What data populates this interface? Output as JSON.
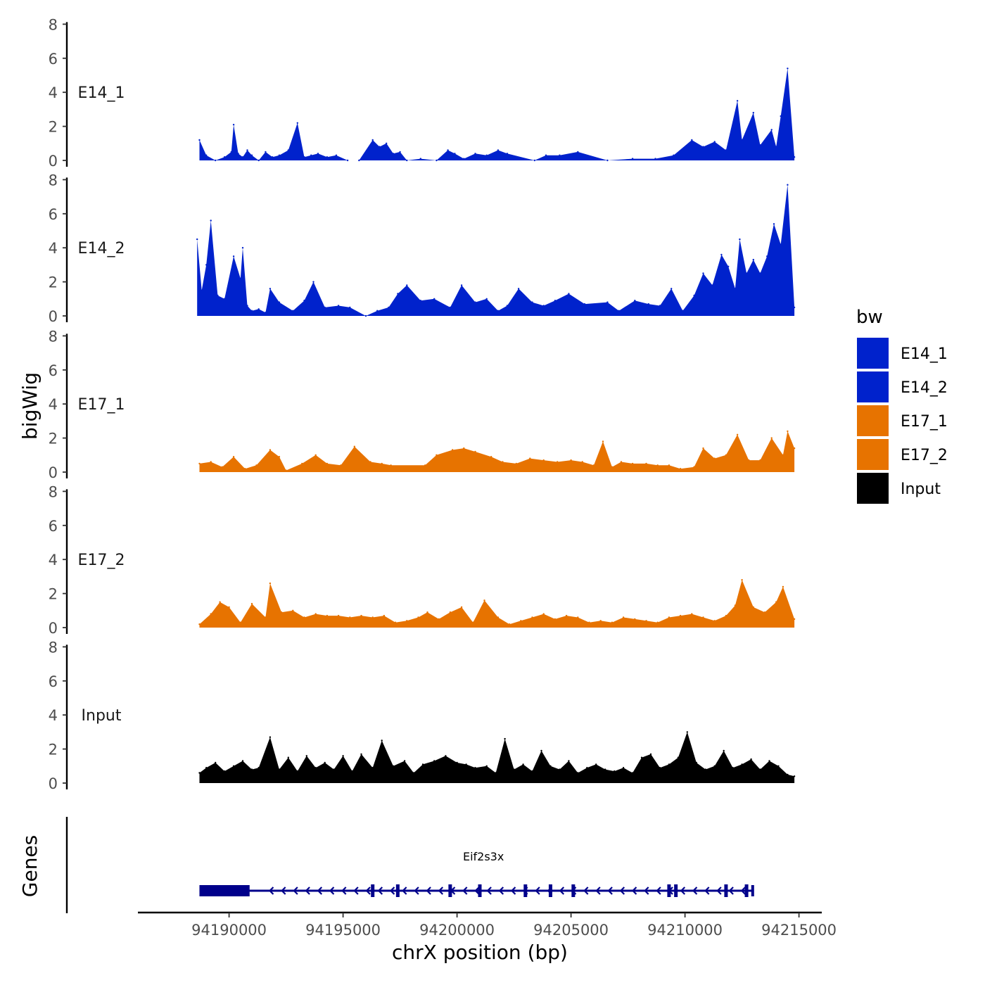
{
  "chart_data": {
    "type": "area",
    "ylabel": "bigWig",
    "xlabel": "chrX position (bp)",
    "xlim": [
      94186000,
      94216000
    ],
    "xticks": [
      94190000,
      94195000,
      94200000,
      94205000,
      94210000,
      94215000
    ],
    "ylim": [
      0,
      8
    ],
    "yticks": [
      0,
      2,
      4,
      6,
      8
    ],
    "legend": {
      "title": "bw",
      "position": "right",
      "entries": [
        {
          "label": "E14_1",
          "color": "#0022cc"
        },
        {
          "label": "E14_2",
          "color": "#0022cc"
        },
        {
          "label": "E17_1",
          "color": "#e77300"
        },
        {
          "label": "E17_2",
          "color": "#e77300"
        },
        {
          "label": "Input",
          "color": "#000000"
        }
      ]
    },
    "series": [
      {
        "name": "E14_1",
        "color": "#0022cc",
        "x": [
          94188700,
          94189000,
          94189400,
          94189800,
          94190100,
          94190200,
          94190400,
          94190600,
          94190800,
          94191000,
          94191300,
          94191600,
          94191900,
          94192200,
          94192600,
          94193000,
          94193300,
          94193600,
          94193900,
          94194300,
          94194700,
          94195200,
          94195700,
          94196300,
          94196600,
          94196900,
          94197200,
          94197500,
          94197800,
          94198400,
          94199100,
          94199600,
          94199900,
          94200300,
          94200800,
          94201300,
          94201800,
          94202200,
          94203400,
          94203900,
          94204500,
          94205300,
          94206600,
          94207700,
          94208700,
          94209500,
          94210300,
          94210800,
          94211300,
          94211800,
          94212300,
          94212500,
          94213000,
          94213300,
          94213800,
          94214000,
          94214200,
          94214500,
          94214800
        ],
        "y": [
          1.2,
          0.3,
          0.0,
          0.2,
          0.5,
          2.1,
          0.4,
          0.2,
          0.6,
          0.3,
          0.0,
          0.5,
          0.2,
          0.3,
          0.6,
          2.2,
          0.2,
          0.3,
          0.4,
          0.2,
          0.3,
          0.0,
          0.0,
          1.2,
          0.8,
          1.0,
          0.4,
          0.5,
          0.0,
          0.1,
          0.0,
          0.6,
          0.4,
          0.1,
          0.4,
          0.3,
          0.6,
          0.4,
          0.0,
          0.3,
          0.3,
          0.5,
          0.0,
          0.1,
          0.1,
          0.3,
          1.2,
          0.8,
          1.1,
          0.6,
          3.5,
          1.2,
          2.8,
          0.9,
          1.8,
          0.8,
          2.6,
          5.4,
          0.2
        ]
      },
      {
        "name": "E14_2",
        "color": "#0022cc",
        "x": [
          94188600,
          94188800,
          94189000,
          94189200,
          94189500,
          94189800,
          94190200,
          94190500,
          94190600,
          94190800,
          94191000,
          94191300,
          94191600,
          94191800,
          94192200,
          94192800,
          94193300,
          94193700,
          94194200,
          94194800,
          94195300,
          94196000,
          94196500,
          94197000,
          94197400,
          94197800,
          94198400,
          94199000,
          94199700,
          94200200,
          94200800,
          94201300,
          94201800,
          94202200,
          94202700,
          94203300,
          94203800,
          94204300,
          94204900,
          94205600,
          94206600,
          94207100,
          94207800,
          94208400,
          94208900,
          94209400,
          94209900,
          94210400,
          94210800,
          94211200,
          94211600,
          94211900,
          94212200,
          94212400,
          94212700,
          94213000,
          94213300,
          94213600,
          94213900,
          94214200,
          94214500,
          94214800
        ],
        "y": [
          4.5,
          1.5,
          3.0,
          5.6,
          1.2,
          1.0,
          3.5,
          2.2,
          4.0,
          0.6,
          0.3,
          0.4,
          0.2,
          1.6,
          0.8,
          0.3,
          0.9,
          2.0,
          0.5,
          0.6,
          0.5,
          0.0,
          0.3,
          0.5,
          1.3,
          1.8,
          0.9,
          1.0,
          0.5,
          1.8,
          0.8,
          1.0,
          0.3,
          0.6,
          1.6,
          0.8,
          0.6,
          0.9,
          1.3,
          0.7,
          0.8,
          0.3,
          0.9,
          0.7,
          0.6,
          1.6,
          0.3,
          1.2,
          2.5,
          1.8,
          3.6,
          2.9,
          1.6,
          4.5,
          2.5,
          3.3,
          2.5,
          3.5,
          5.4,
          4.2,
          7.7,
          0.5
        ]
      },
      {
        "name": "E17_1",
        "color": "#e77300",
        "x": [
          94188700,
          94189200,
          94189700,
          94190200,
          94190700,
          94191200,
          94191800,
          94192200,
          94192500,
          94193200,
          94193800,
          94194300,
          94194900,
          94195500,
          94196200,
          94196700,
          94197100,
          94198600,
          94199100,
          94199800,
          94200300,
          94200800,
          94201500,
          94202000,
          94202600,
          94203200,
          94203800,
          94204400,
          94205000,
          94205500,
          94206000,
          94206400,
          94206800,
          94207200,
          94207700,
          94208300,
          94208800,
          94209300,
          94209800,
          94210400,
          94210800,
          94211300,
          94211800,
          94212300,
          94212800,
          94213300,
          94213800,
          94214300,
          94214500,
          94214800
        ],
        "y": [
          0.5,
          0.6,
          0.3,
          0.9,
          0.2,
          0.4,
          1.3,
          0.9,
          0.1,
          0.5,
          1.0,
          0.5,
          0.4,
          1.5,
          0.6,
          0.5,
          0.4,
          0.4,
          1.0,
          1.3,
          1.4,
          1.2,
          0.9,
          0.6,
          0.5,
          0.8,
          0.7,
          0.6,
          0.7,
          0.6,
          0.4,
          1.8,
          0.3,
          0.6,
          0.5,
          0.5,
          0.4,
          0.4,
          0.2,
          0.3,
          1.4,
          0.8,
          1.0,
          2.2,
          0.7,
          0.7,
          2.0,
          1.0,
          2.4,
          1.4
        ]
      },
      {
        "name": "E17_2",
        "color": "#e77300",
        "x": [
          94188700,
          94189200,
          94189600,
          94190000,
          94190500,
          94191000,
          94191600,
          94191800,
          94192300,
          94192800,
          94193300,
          94193800,
          94194300,
          94194800,
          94195300,
          94195800,
          94196300,
          94196800,
          94197300,
          94197800,
          94198300,
          94198700,
          94199200,
          94199700,
          94200200,
          94200700,
          94201200,
          94201800,
          94202300,
          94202800,
          94203300,
          94203800,
          94204300,
          94204800,
          94205300,
          94205800,
          94206300,
          94206800,
          94207300,
          94207800,
          94208300,
          94208800,
          94209300,
          94209800,
          94210300,
          94210800,
          94211300,
          94211800,
          94212200,
          94212500,
          94213000,
          94213500,
          94214000,
          94214300,
          94214800
        ],
        "y": [
          0.2,
          0.8,
          1.5,
          1.2,
          0.3,
          1.4,
          0.6,
          2.6,
          0.9,
          1.0,
          0.6,
          0.8,
          0.7,
          0.7,
          0.6,
          0.7,
          0.6,
          0.7,
          0.3,
          0.4,
          0.6,
          0.9,
          0.5,
          0.9,
          1.2,
          0.3,
          1.6,
          0.6,
          0.2,
          0.4,
          0.6,
          0.8,
          0.5,
          0.7,
          0.6,
          0.3,
          0.4,
          0.3,
          0.6,
          0.5,
          0.4,
          0.3,
          0.6,
          0.7,
          0.8,
          0.6,
          0.4,
          0.7,
          1.3,
          2.8,
          1.2,
          0.9,
          1.5,
          2.4,
          0.5
        ]
      },
      {
        "name": "Input",
        "color": "#000000",
        "x": [
          94188700,
          94189000,
          94189400,
          94189800,
          94190200,
          94190600,
          94191000,
          94191300,
          94191800,
          94192200,
          94192600,
          94193000,
          94193400,
          94193800,
          94194200,
          94194600,
          94195000,
          94195400,
          94195800,
          94196300,
          94196700,
          94197200,
          94197700,
          94198100,
          94198500,
          94199000,
          94199500,
          94200000,
          94200400,
          94200800,
          94201300,
          94201700,
          94202100,
          94202500,
          94202900,
          94203300,
          94203700,
          94204100,
          94204500,
          94204900,
          94205300,
          94205700,
          94206100,
          94206500,
          94206900,
          94207300,
          94207700,
          94208100,
          94208500,
          94208900,
          94209300,
          94209700,
          94210100,
          94210500,
          94210900,
          94211300,
          94211700,
          94212100,
          94212500,
          94212900,
          94213300,
          94213700,
          94214100,
          94214500,
          94214800
        ],
        "y": [
          0.6,
          0.9,
          1.2,
          0.7,
          1.0,
          1.3,
          0.8,
          0.9,
          2.7,
          0.8,
          1.5,
          0.7,
          1.6,
          0.9,
          1.2,
          0.8,
          1.6,
          0.7,
          1.7,
          0.9,
          2.5,
          1.0,
          1.3,
          0.6,
          1.1,
          1.3,
          1.6,
          1.2,
          1.1,
          0.9,
          1.0,
          0.6,
          2.6,
          0.8,
          1.1,
          0.7,
          1.9,
          1.0,
          0.8,
          1.3,
          0.6,
          0.9,
          1.1,
          0.8,
          0.7,
          0.9,
          0.6,
          1.5,
          1.7,
          0.9,
          1.1,
          1.5,
          3.0,
          1.2,
          0.8,
          1.0,
          1.9,
          0.9,
          1.1,
          1.4,
          0.8,
          1.3,
          1.0,
          0.5,
          0.4
        ]
      }
    ],
    "genes_track": {
      "label": "Genes",
      "color": "#00008b",
      "genes": [
        {
          "name": "Eif2s3x",
          "start": 94188700,
          "end": 94213000,
          "strand": "-",
          "thick_exon": [
            94188700,
            94190900
          ],
          "exons": [
            94196300,
            94197400,
            94199700,
            94201000,
            94203000,
            94204100,
            94205100,
            94209300,
            94209600,
            94211800,
            94212700
          ]
        }
      ]
    }
  }
}
